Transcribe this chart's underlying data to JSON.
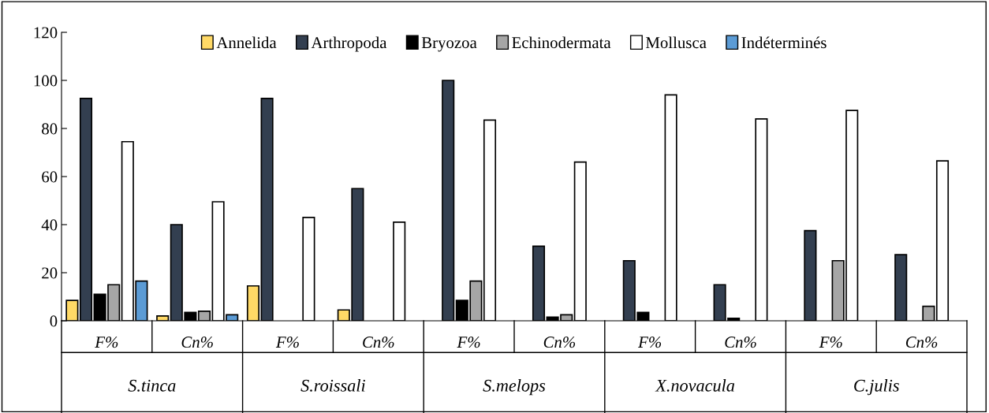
{
  "chart_data": {
    "type": "bar",
    "categories": [
      "F%",
      "Cn%",
      "F%",
      "Cn%",
      "F%",
      "Cn%",
      "F%",
      "Cn%",
      "F%",
      "Cn%"
    ],
    "series": [
      {
        "name": "Annelida",
        "color": "#ffd966",
        "values": [
          8.5,
          2,
          14.5,
          4.5,
          null,
          null,
          null,
          null,
          null,
          null
        ]
      },
      {
        "name": "Arthropoda",
        "color": "#333f50",
        "values": [
          92.5,
          40,
          92.5,
          55,
          100,
          31,
          25,
          15,
          37.5,
          27.5
        ]
      },
      {
        "name": "Bryozoa",
        "color": "#000000",
        "values": [
          11,
          3.5,
          null,
          null,
          8.5,
          1.5,
          3.5,
          1,
          null,
          null
        ]
      },
      {
        "name": "Echinodermata",
        "color": "#a6a6a6",
        "values": [
          15,
          4,
          null,
          null,
          16.5,
          2.5,
          null,
          null,
          25,
          6
        ]
      },
      {
        "name": "Mollusca",
        "color": "#ffffff",
        "values": [
          74.5,
          49.5,
          43,
          41,
          83.5,
          66,
          94,
          84,
          87.5,
          66.5
        ]
      },
      {
        "name": "Indéterminés",
        "color": "#5b9bd5",
        "values": [
          16.5,
          2.5,
          null,
          null,
          null,
          null,
          null,
          null,
          null,
          null
        ]
      }
    ],
    "annotations": [
      "S.tinca",
      "S.roissali",
      "S.melops",
      "X.novacula",
      "C.julis"
    ],
    "ylim": [
      0,
      120
    ],
    "yticks": [
      0,
      20,
      40,
      60,
      80,
      100,
      120
    ],
    "grid": false,
    "legend": "top"
  }
}
